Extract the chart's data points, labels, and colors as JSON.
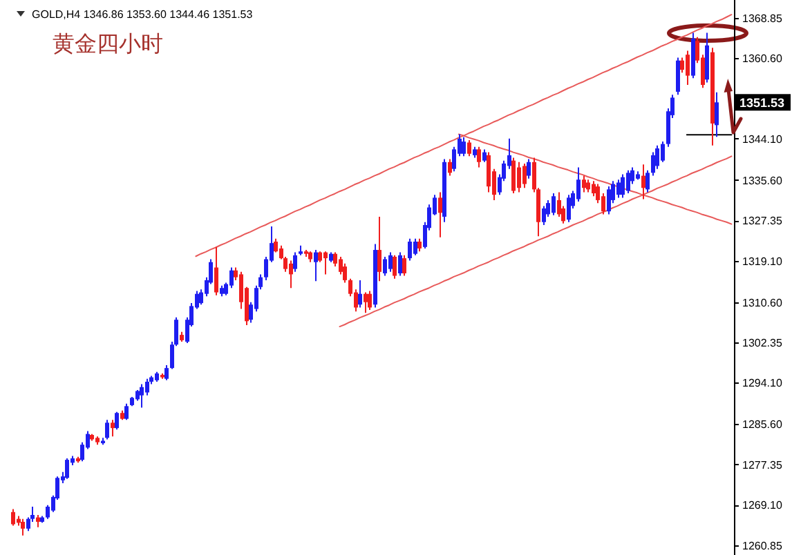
{
  "chart_data": {
    "type": "candlestick",
    "title": "黄金四小时",
    "subtitle": "GOLD,H4 1346.86 1353.60 1344.46 1351.53",
    "categories": [
      null,
      null,
      null,
      null,
      null,
      null,
      null,
      null,
      null,
      null,
      null,
      null,
      null,
      null,
      null,
      null,
      null,
      null,
      null,
      null,
      null,
      null,
      null,
      null,
      null,
      null,
      null,
      null,
      null,
      null,
      null,
      null,
      null,
      null,
      null,
      null,
      null,
      null,
      null,
      null,
      null,
      null,
      null,
      null,
      null,
      null,
      null,
      null,
      null,
      null,
      null,
      null,
      null,
      null,
      null,
      null,
      null,
      null,
      null,
      null,
      null,
      null,
      null,
      null,
      null,
      null,
      null,
      null,
      null,
      null,
      null,
      null,
      null,
      null,
      null,
      null,
      null,
      null,
      null,
      null,
      null,
      null,
      null,
      null,
      null,
      null,
      null,
      null,
      null,
      null,
      null,
      null,
      null,
      null,
      null,
      null,
      null,
      null,
      null,
      null,
      null,
      null,
      null,
      null,
      null,
      null,
      null,
      null,
      null,
      null,
      null,
      null,
      null,
      null,
      null,
      null,
      null,
      null,
      null,
      null,
      null,
      null,
      null,
      null,
      null,
      null,
      null,
      null,
      null,
      null,
      null,
      null,
      null,
      null,
      null,
      null,
      null,
      null,
      null,
      null,
      null,
      null,
      null,
      null,
      null,
      null,
      null,
      null
    ],
    "ohlc": [
      null,
      null,
      [
        1267.6,
        1268.2,
        1264.8,
        1265.1
      ],
      [
        1266.2,
        1266.8,
        1264.8,
        1265.4
      ],
      [
        1265.6,
        1266.2,
        1262.8,
        1264.2
      ],
      [
        1264.2,
        1266.5,
        1263.7,
        1266.2
      ],
      [
        1266.2,
        1268.7,
        1265.6,
        1267.0
      ],
      [
        1266.5,
        1267.0,
        1264.5,
        1265.6
      ],
      [
        1265.6,
        1266.8,
        1265.4,
        1266.5
      ],
      [
        1266.5,
        1269.0,
        1266.2,
        1268.7
      ],
      [
        1267.9,
        1271.0,
        1267.6,
        1270.7
      ],
      [
        1270.4,
        1274.9,
        1270.1,
        1274.6
      ],
      [
        1274.1,
        1275.8,
        1273.5,
        1274.9
      ],
      [
        1274.6,
        1278.6,
        1274.4,
        1278.3
      ],
      [
        1277.7,
        1279.1,
        1277.2,
        1278.6
      ],
      [
        1278.6,
        1278.9,
        1277.7,
        1278.0
      ],
      [
        1278.3,
        1281.9,
        1278.0,
        1281.4
      ],
      [
        1280.8,
        1284.2,
        1280.5,
        1283.6
      ],
      [
        1283.4,
        1283.6,
        1282.2,
        1282.5
      ],
      [
        1282.8,
        1283.1,
        1281.4,
        1281.9
      ],
      [
        1281.7,
        1282.8,
        1281.4,
        1282.2
      ],
      [
        1282.8,
        1286.5,
        1282.5,
        1285.9
      ],
      [
        1285.9,
        1286.5,
        1283.1,
        1284.8
      ],
      [
        1284.8,
        1288.1,
        1284.5,
        1287.9
      ],
      [
        1287.9,
        1288.4,
        1286.5,
        1286.7
      ],
      [
        1286.7,
        1289.8,
        1286.5,
        1289.3
      ],
      [
        1289.5,
        1291.2,
        1289.3,
        1291.0
      ],
      [
        1290.7,
        1292.6,
        1290.4,
        1292.4
      ],
      [
        1291.5,
        1293.8,
        1289.0,
        1293.2
      ],
      [
        1292.1,
        1294.9,
        1291.5,
        1294.3
      ],
      [
        1294.3,
        1295.5,
        1293.8,
        1295.2
      ],
      [
        1294.6,
        1296.3,
        1294.3,
        1296.0
      ],
      [
        1295.7,
        1296.0,
        1294.9,
        1295.2
      ],
      [
        1294.9,
        1297.7,
        1294.6,
        1297.1
      ],
      [
        1297.1,
        1302.5,
        1296.9,
        1301.9
      ],
      [
        1301.9,
        1307.5,
        1301.6,
        1307.0
      ],
      [
        1303.9,
        1304.5,
        1302.5,
        1302.8
      ],
      [
        1302.5,
        1307.5,
        1302.2,
        1307.0
      ],
      [
        1305.9,
        1310.4,
        1305.6,
        1309.8
      ],
      [
        1309.5,
        1312.9,
        1309.2,
        1312.3
      ],
      [
        1310.4,
        1313.2,
        1310.1,
        1312.6
      ],
      [
        1312.3,
        1315.7,
        1311.8,
        1315.1
      ],
      [
        1314.6,
        1319.4,
        1314.3,
        1318.8
      ],
      [
        1317.7,
        1321.9,
        1312.0,
        1312.6
      ],
      [
        1312.3,
        1314.0,
        1311.8,
        1313.5
      ],
      [
        1312.3,
        1314.6,
        1312.0,
        1314.3
      ],
      [
        1314.0,
        1317.7,
        1313.5,
        1317.1
      ],
      [
        1317.1,
        1317.7,
        1315.1,
        1315.7
      ],
      [
        1316.3,
        1316.8,
        1309.2,
        1310.6
      ],
      [
        1313.5,
        1313.7,
        1305.9,
        1306.7
      ],
      [
        1307.0,
        1310.6,
        1306.4,
        1310.1
      ],
      [
        1309.2,
        1314.0,
        1308.7,
        1313.5
      ],
      [
        1313.7,
        1316.3,
        1313.2,
        1315.7
      ],
      [
        1315.7,
        1319.9,
        1315.1,
        1319.4
      ],
      [
        1319.1,
        1326.1,
        1318.8,
        1322.7
      ],
      [
        1323.0,
        1323.6,
        1320.8,
        1321.0
      ],
      [
        1321.6,
        1322.2,
        1319.4,
        1319.6
      ],
      [
        1319.6,
        1319.9,
        1316.8,
        1317.4
      ],
      [
        1318.5,
        1319.1,
        1313.5,
        1316.3
      ],
      [
        1317.4,
        1320.8,
        1316.8,
        1320.2
      ],
      [
        1320.5,
        1322.2,
        1320.2,
        1321.0
      ],
      [
        1321.0,
        1321.3,
        1319.9,
        1320.5
      ],
      [
        1320.8,
        1321.0,
        1318.8,
        1319.4
      ],
      [
        1318.8,
        1321.3,
        1314.9,
        1320.8
      ],
      [
        1320.8,
        1321.0,
        1318.8,
        1319.1
      ],
      [
        1320.8,
        1321.0,
        1316.3,
        1319.6
      ],
      [
        1319.1,
        1320.8,
        1318.8,
        1320.5
      ],
      [
        1320.5,
        1320.8,
        1317.9,
        1318.5
      ],
      [
        1319.4,
        1319.9,
        1316.3,
        1316.8
      ],
      [
        1317.9,
        1318.5,
        1314.6,
        1315.1
      ],
      [
        1315.1,
        1315.4,
        1311.8,
        1312.3
      ],
      [
        1312.6,
        1313.2,
        1308.7,
        1309.5
      ],
      [
        1310.1,
        1315.1,
        1309.5,
        1312.3
      ],
      [
        1312.3,
        1312.6,
        1308.4,
        1310.6
      ],
      [
        1312.3,
        1312.9,
        1309.0,
        1309.5
      ],
      [
        1310.1,
        1322.5,
        1309.5,
        1321.3
      ],
      [
        1321.3,
        1328.1,
        1314.9,
        1316.8
      ],
      [
        1316.5,
        1319.9,
        1316.0,
        1319.4
      ],
      [
        1317.4,
        1320.8,
        1316.8,
        1320.2
      ],
      [
        1319.9,
        1320.2,
        1315.4,
        1316.0
      ],
      [
        1316.5,
        1320.8,
        1316.0,
        1320.2
      ],
      [
        1319.6,
        1320.2,
        1316.0,
        1316.5
      ],
      [
        1319.6,
        1323.6,
        1319.1,
        1323.0
      ],
      [
        1320.5,
        1323.6,
        1320.2,
        1323.0
      ],
      [
        1323.0,
        1323.6,
        1321.0,
        1321.6
      ],
      [
        1321.9,
        1327.0,
        1321.6,
        1326.4
      ],
      [
        1325.8,
        1330.6,
        1325.3,
        1330.0
      ],
      [
        1328.6,
        1332.6,
        1328.4,
        1332.0
      ],
      [
        1332.0,
        1333.1,
        1323.9,
        1328.9
      ],
      [
        1328.1,
        1339.9,
        1327.0,
        1339.3
      ],
      [
        1339.3,
        1339.9,
        1336.5,
        1337.1
      ],
      [
        1337.9,
        1342.4,
        1337.4,
        1341.9
      ],
      [
        1341.0,
        1345.0,
        1340.5,
        1344.1
      ],
      [
        1341.0,
        1344.4,
        1340.5,
        1343.5
      ],
      [
        1343.3,
        1343.8,
        1340.5,
        1341.0
      ],
      [
        1340.7,
        1342.4,
        1340.2,
        1341.9
      ],
      [
        1341.9,
        1342.4,
        1338.2,
        1339.3
      ],
      [
        1339.6,
        1341.9,
        1339.3,
        1341.3
      ],
      [
        1340.7,
        1341.3,
        1333.1,
        1334.3
      ],
      [
        1337.4,
        1337.9,
        1331.5,
        1332.6
      ],
      [
        1333.1,
        1336.8,
        1332.6,
        1336.2
      ],
      [
        1335.9,
        1339.6,
        1335.4,
        1339.0
      ],
      [
        1338.5,
        1344.1,
        1337.9,
        1340.7
      ],
      [
        1339.6,
        1340.2,
        1332.9,
        1333.4
      ],
      [
        1338.2,
        1339.3,
        1333.1,
        1334.0
      ],
      [
        1338.5,
        1339.0,
        1334.0,
        1334.8
      ],
      [
        1336.5,
        1339.9,
        1335.9,
        1339.3
      ],
      [
        1339.3,
        1340.2,
        1333.1,
        1333.7
      ],
      [
        1333.7,
        1334.0,
        1324.1,
        1327.0
      ],
      [
        1327.0,
        1330.3,
        1326.4,
        1329.8
      ],
      [
        1328.6,
        1331.5,
        1328.1,
        1330.9
      ],
      [
        1328.9,
        1332.9,
        1328.4,
        1332.3
      ],
      [
        1331.5,
        1333.1,
        1328.1,
        1328.6
      ],
      [
        1329.8,
        1330.3,
        1326.7,
        1327.2
      ],
      [
        1327.5,
        1332.6,
        1327.0,
        1332.0
      ],
      [
        1330.3,
        1333.4,
        1329.8,
        1332.9
      ],
      [
        1331.7,
        1338.2,
        1331.2,
        1335.7
      ],
      [
        1335.7,
        1336.5,
        1333.1,
        1334.0
      ],
      [
        1335.1,
        1335.7,
        1333.1,
        1333.7
      ],
      [
        1334.8,
        1335.4,
        1332.3,
        1332.9
      ],
      [
        1334.3,
        1334.8,
        1330.9,
        1331.5
      ],
      [
        1332.3,
        1332.9,
        1328.6,
        1329.2
      ],
      [
        1329.2,
        1334.3,
        1328.6,
        1333.7
      ],
      [
        1331.5,
        1335.4,
        1330.9,
        1334.8
      ],
      [
        1332.6,
        1335.7,
        1332.0,
        1335.1
      ],
      [
        1332.6,
        1336.8,
        1332.0,
        1336.2
      ],
      [
        1333.4,
        1337.6,
        1332.9,
        1337.1
      ],
      [
        1335.4,
        1338.2,
        1334.8,
        1337.6
      ],
      [
        1335.9,
        1337.4,
        1335.7,
        1336.8
      ],
      [
        1336.5,
        1338.8,
        1331.7,
        1334.0
      ],
      [
        1333.7,
        1337.6,
        1333.1,
        1337.1
      ],
      [
        1337.1,
        1341.3,
        1336.5,
        1340.7
      ],
      [
        1338.5,
        1342.7,
        1337.9,
        1342.1
      ],
      [
        1339.6,
        1343.5,
        1339.3,
        1343.0
      ],
      [
        1343.0,
        1350.3,
        1342.4,
        1349.7
      ],
      [
        1348.9,
        1353.1,
        1348.3,
        1352.5
      ],
      [
        1353.7,
        1360.7,
        1353.1,
        1360.1
      ],
      [
        1360.1,
        1360.7,
        1357.6,
        1358.2
      ],
      [
        1361.3,
        1362.1,
        1355.1,
        1357.0
      ],
      [
        1357.0,
        1365.8,
        1356.5,
        1364.6
      ],
      [
        1364.1,
        1364.9,
        1359.6,
        1360.1
      ],
      [
        1360.7,
        1361.3,
        1354.5,
        1355.1
      ],
      [
        1356.2,
        1365.8,
        1355.6,
        1363.2
      ],
      [
        1361.8,
        1362.7,
        1342.7,
        1347.2
      ],
      [
        1346.86,
        1353.6,
        1344.46,
        1351.53
      ],
      null,
      null,
      null
    ],
    "colors": [
      null,
      null,
      "#f01e1e",
      "#f01e1e",
      "#f01e1e",
      "#1e1ef0",
      "#1e1ef0",
      "#f01e1e",
      "#1e1ef0",
      "#1e1ef0",
      "#1e1ef0",
      "#1e1ef0",
      "#1e1ef0",
      "#1e1ef0",
      "#1e1ef0",
      "#f01e1e",
      "#1e1ef0",
      "#1e1ef0",
      "#f01e1e",
      "#f01e1e",
      "#1e1ef0",
      "#1e1ef0",
      "#f01e1e",
      "#1e1ef0",
      "#f01e1e",
      "#1e1ef0",
      "#1e1ef0",
      "#1e1ef0",
      "#1e1ef0",
      "#1e1ef0",
      "#1e1ef0",
      "#1e1ef0",
      "#f01e1e",
      "#1e1ef0",
      "#1e1ef0",
      "#1e1ef0",
      "#f01e1e",
      "#1e1ef0",
      "#1e1ef0",
      "#1e1ef0",
      "#1e1ef0",
      "#1e1ef0",
      "#1e1ef0",
      "#f01e1e",
      "#1e1ef0",
      "#1e1ef0",
      "#1e1ef0",
      "#f01e1e",
      "#f01e1e",
      "#f01e1e",
      "#1e1ef0",
      "#1e1ef0",
      "#1e1ef0",
      "#1e1ef0",
      "#1e1ef0",
      "#f01e1e",
      "#f01e1e",
      "#f01e1e",
      "#f01e1e",
      "#1e1ef0",
      "#1e1ef0",
      "#f01e1e",
      "#f01e1e",
      "#1e1ef0",
      "#f01e1e",
      "#f01e1e",
      "#1e1ef0",
      "#f01e1e",
      "#f01e1e",
      "#f01e1e",
      "#f01e1e",
      "#f01e1e",
      "#1e1ef0",
      "#f01e1e",
      "#f01e1e",
      "#1e1ef0",
      "#f01e1e",
      "#1e1ef0",
      "#1e1ef0",
      "#f01e1e",
      "#1e1ef0",
      "#f01e1e",
      "#1e1ef0",
      "#1e1ef0",
      "#f01e1e",
      "#1e1ef0",
      "#1e1ef0",
      "#1e1ef0",
      "#f01e1e",
      "#1e1ef0",
      "#f01e1e",
      "#1e1ef0",
      "#1e1ef0",
      "#1e1ef0",
      "#f01e1e",
      "#1e1ef0",
      "#f01e1e",
      "#1e1ef0",
      "#f01e1e",
      "#f01e1e",
      "#1e1ef0",
      "#1e1ef0",
      "#1e1ef0",
      "#f01e1e",
      "#f01e1e",
      "#f01e1e",
      "#1e1ef0",
      "#f01e1e",
      "#f01e1e",
      "#1e1ef0",
      "#1e1ef0",
      "#1e1ef0",
      "#f01e1e",
      "#f01e1e",
      "#1e1ef0",
      "#1e1ef0",
      "#1e1ef0",
      "#f01e1e",
      "#f01e1e",
      "#f01e1e",
      "#f01e1e",
      "#f01e1e",
      "#1e1ef0",
      "#1e1ef0",
      "#1e1ef0",
      "#1e1ef0",
      "#1e1ef0",
      "#1e1ef0",
      "#1e1ef0",
      "#f01e1e",
      "#1e1ef0",
      "#1e1ef0",
      "#1e1ef0",
      "#1e1ef0",
      "#1e1ef0",
      "#1e1ef0",
      "#1e1ef0",
      "#f01e1e",
      "#f01e1e",
      "#1e1ef0",
      "#f01e1e",
      "#f01e1e",
      "#1e1ef0",
      "#f01e1e",
      "#1e1ef0",
      null,
      null,
      null
    ],
    "series": [
      {
        "type": "line",
        "color": "#e85a5a",
        "values": [
          null,
          null,
          null,
          null,
          null,
          null,
          null,
          null,
          null,
          null,
          null,
          null,
          null,
          null,
          null,
          null,
          null,
          null,
          null,
          null,
          null,
          null,
          null,
          null,
          null,
          null,
          null,
          null,
          null,
          null,
          null,
          null,
          null,
          null,
          null,
          null,
          null,
          null,
          null,
          1320.0,
          1320.5,
          1320.9,
          1321.4,
          1321.8,
          1322.3,
          1322.7,
          1323.2,
          1323.7,
          1324.1,
          1324.6,
          1325.0,
          1325.5,
          1326.0,
          1326.4,
          1326.9,
          1327.3,
          1327.8,
          1328.2,
          1328.7,
          1329.2,
          1329.6,
          1330.1,
          1330.5,
          1331.0,
          1331.5,
          1331.9,
          1332.4,
          1332.8,
          1333.3,
          1333.7,
          1334.2,
          1334.7,
          1335.1,
          1335.6,
          1336.0,
          1336.5,
          1336.9,
          1337.4,
          1337.9,
          1338.3,
          1338.8,
          1339.2,
          1339.7,
          1340.2,
          1340.6,
          1341.1,
          1341.5,
          1342.0,
          1342.4,
          1342.9,
          1343.4,
          1343.8,
          1344.3,
          1344.7,
          1345.2,
          1345.6,
          1346.1,
          1346.6,
          1347.0,
          1347.5,
          1347.9,
          1348.4,
          1348.9,
          1349.3,
          1349.8,
          1350.2,
          1350.7,
          1351.1,
          1351.6,
          1352.1,
          1352.5,
          1353.0,
          1353.4,
          1353.9,
          1354.4,
          1354.8,
          1355.3,
          1355.7,
          1356.2,
          1356.6,
          1357.1,
          1357.6,
          1358.0,
          1358.5,
          1358.9,
          1359.4,
          1359.8,
          1360.3,
          1360.8,
          1361.2,
          1361.7,
          1362.1,
          1362.6,
          1363.1,
          1363.5,
          1364.0,
          1364.4,
          1364.9,
          1365.3,
          1365.8,
          1366.3,
          1366.7,
          1367.2,
          1367.6,
          1368.1,
          1368.5,
          1369.0,
          1369.5
        ]
      },
      {
        "type": "line",
        "color": "#e85a5a",
        "values": [
          null,
          null,
          null,
          null,
          null,
          null,
          null,
          null,
          null,
          null,
          null,
          null,
          null,
          null,
          null,
          null,
          null,
          null,
          null,
          null,
          null,
          null,
          null,
          null,
          null,
          null,
          null,
          null,
          null,
          null,
          null,
          null,
          null,
          null,
          null,
          null,
          null,
          null,
          null,
          null,
          null,
          null,
          null,
          null,
          null,
          null,
          null,
          null,
          null,
          null,
          null,
          null,
          null,
          null,
          null,
          null,
          null,
          null,
          null,
          null,
          null,
          null,
          null,
          null,
          null,
          null,
          null,
          null,
          1305.6,
          1306.0,
          1306.5,
          1306.9,
          1307.4,
          1307.8,
          1308.2,
          1308.7,
          1309.1,
          1309.6,
          1310.0,
          1310.5,
          1310.9,
          1311.3,
          1311.8,
          1312.2,
          1312.7,
          1313.1,
          1313.5,
          1314.0,
          1314.4,
          1314.9,
          1315.3,
          1315.8,
          1316.2,
          1316.6,
          1317.1,
          1317.5,
          1318.0,
          1318.4,
          1318.8,
          1319.3,
          1319.7,
          1320.2,
          1320.6,
          1321.1,
          1321.5,
          1321.9,
          1322.4,
          1322.8,
          1323.3,
          1323.7,
          1324.1,
          1324.6,
          1325.0,
          1325.5,
          1325.9,
          1326.4,
          1326.8,
          1327.2,
          1327.7,
          1328.1,
          1328.6,
          1329.0,
          1329.4,
          1329.9,
          1330.3,
          1330.8,
          1331.2,
          1331.7,
          1332.1,
          1332.5,
          1333.0,
          1333.4,
          1333.9,
          1334.3,
          1334.7,
          1335.2,
          1335.6,
          1336.1,
          1336.5,
          1337.0,
          1337.4,
          1337.8,
          1338.3,
          1338.7,
          1339.2,
          1339.6,
          1340.0,
          1340.5
        ]
      },
      {
        "type": "line",
        "color": "#e85a5a",
        "values": [
          null,
          null,
          null,
          null,
          null,
          null,
          null,
          null,
          null,
          null,
          null,
          null,
          null,
          null,
          null,
          null,
          null,
          null,
          null,
          null,
          null,
          null,
          null,
          null,
          null,
          null,
          null,
          null,
          null,
          null,
          null,
          null,
          null,
          null,
          null,
          null,
          null,
          null,
          null,
          null,
          null,
          null,
          null,
          null,
          null,
          null,
          null,
          null,
          null,
          null,
          null,
          null,
          null,
          null,
          null,
          null,
          null,
          null,
          null,
          null,
          null,
          null,
          null,
          null,
          null,
          null,
          null,
          null,
          null,
          null,
          null,
          null,
          null,
          null,
          null,
          null,
          null,
          null,
          null,
          null,
          null,
          null,
          null,
          null,
          null,
          null,
          null,
          null,
          null,
          null,
          null,
          null,
          1345.0,
          1344.7,
          1344.3,
          1344.0,
          1343.7,
          1343.3,
          1343.0,
          1342.7,
          1342.3,
          1342.0,
          1341.7,
          1341.3,
          1341.0,
          1340.7,
          1340.3,
          1340.0,
          1339.7,
          1339.3,
          1339.0,
          1338.7,
          1338.3,
          1338.0,
          1337.7,
          1337.3,
          1337.0,
          1336.7,
          1336.3,
          1336.0,
          1335.6,
          1335.3,
          1335.0,
          1334.6,
          1334.3,
          1334.0,
          1333.6,
          1333.3,
          1333.0,
          1332.6,
          1332.3,
          1332.0,
          1331.6,
          1331.3,
          1331.0,
          1330.6,
          1330.3,
          1330.0,
          1329.6,
          1329.3,
          1329.0,
          1328.6,
          1328.3,
          1328.0,
          1327.6,
          1327.3,
          1327.0,
          1326.6
        ]
      },
      {
        "type": "line",
        "color": "#000000",
        "values": [
          null,
          null,
          null,
          null,
          null,
          null,
          null,
          null,
          null,
          null,
          null,
          null,
          null,
          null,
          null,
          null,
          null,
          null,
          null,
          null,
          null,
          null,
          null,
          null,
          null,
          null,
          null,
          null,
          null,
          null,
          null,
          null,
          null,
          null,
          null,
          null,
          null,
          null,
          null,
          null,
          null,
          null,
          null,
          null,
          null,
          null,
          null,
          null,
          null,
          null,
          null,
          null,
          null,
          null,
          null,
          null,
          null,
          null,
          null,
          null,
          null,
          null,
          null,
          null,
          null,
          null,
          null,
          null,
          null,
          null,
          null,
          null,
          null,
          null,
          null,
          null,
          null,
          null,
          null,
          null,
          null,
          null,
          null,
          null,
          null,
          null,
          null,
          null,
          null,
          null,
          null,
          null,
          null,
          null,
          null,
          null,
          null,
          null,
          null,
          null,
          null,
          null,
          null,
          null,
          null,
          null,
          null,
          null,
          null,
          null,
          null,
          null,
          null,
          null,
          null,
          null,
          null,
          null,
          null,
          null,
          null,
          null,
          null,
          null,
          null,
          null,
          null,
          null,
          null,
          null,
          null,
          null,
          null,
          null,
          null,
          null,
          null,
          null,
          1344.9,
          1344.9,
          1344.9,
          1344.9,
          1344.9,
          1344.9,
          1344.9,
          1344.9,
          1344.9,
          1344.9
        ]
      }
    ],
    "ylim": [
      1258.8,
      1372.5
    ],
    "yticks": [
      1368.85,
      {
        "value": 1360.6,
        "label": "1360.60"
      },
      {
        "value": 1344.1,
        "label": "1344.10"
      },
      {
        "value": 1335.6,
        "label": "1335.60"
      },
      1327.35,
      {
        "value": 1319.1,
        "label": "1319.10"
      },
      {
        "value": 1310.6,
        "label": "1310.60"
      },
      1302.35,
      {
        "value": 1294.1,
        "label": "1294.10"
      },
      {
        "value": 1285.6,
        "label": "1285.60"
      },
      1277.35,
      {
        "value": 1269.1,
        "label": "1269.10"
      },
      1260.85
    ],
    "tick_labels": "y",
    "annotations": [
      {
        "text": "1351.53",
        "y": 1351.53
      }
    ]
  }
}
